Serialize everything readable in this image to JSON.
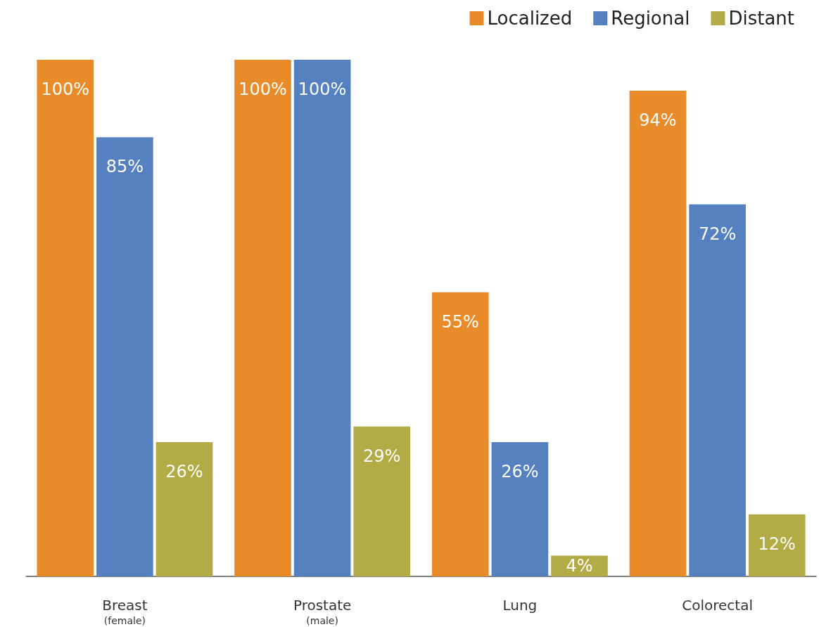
{
  "chart_data": {
    "type": "bar",
    "categories": [
      "Breast\n(female)",
      "Prostate\n(male)",
      "Lung",
      "Colorectal"
    ],
    "series": [
      {
        "name": "Localized",
        "color": "#e88b28",
        "values": [
          100,
          100,
          55,
          94
        ],
        "value_labels": [
          "100%",
          "100%",
          "55%",
          "94%"
        ]
      },
      {
        "name": "Regional",
        "color": "#5581c1",
        "values": [
          85,
          100,
          26,
          72
        ],
        "value_labels": [
          "85%",
          "100%",
          "26%",
          "72%"
        ]
      },
      {
        "name": "Distant",
        "color": "#b3ab46",
        "values": [
          26,
          29,
          4,
          12
        ],
        "value_labels": [
          "26%",
          "29%",
          "4%",
          "12%"
        ]
      }
    ],
    "legend": "top right"
  }
}
